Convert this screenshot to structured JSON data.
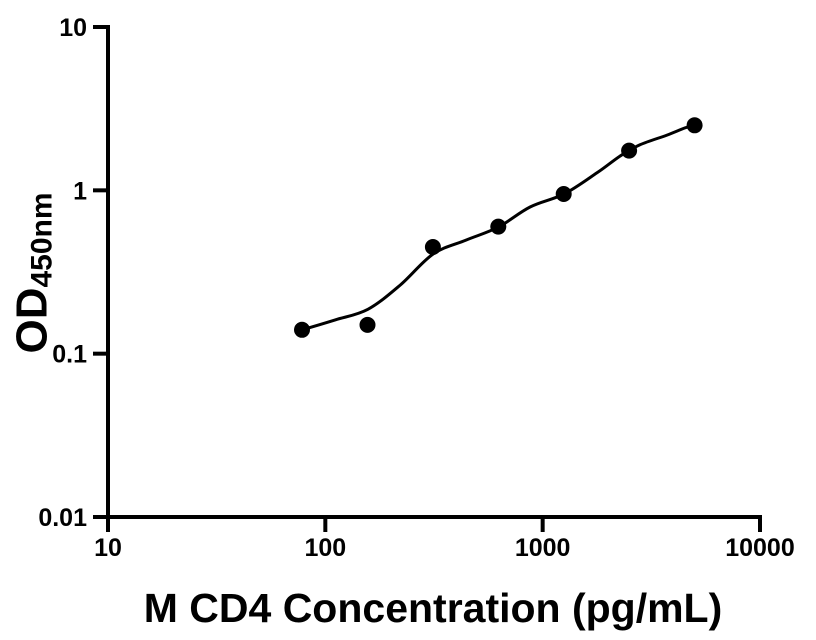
{
  "chart_data": {
    "type": "scatter",
    "title": "",
    "xlabel": "M CD4 Concentration (pg/mL)",
    "ylabel_main": "OD",
    "ylabel_subscript": "450nm",
    "x_axis": {
      "scale": "log",
      "min": 10,
      "max": 10000,
      "ticks": [
        10,
        100,
        1000,
        10000
      ],
      "tick_labels": [
        "10",
        "100",
        "1000",
        "10000"
      ]
    },
    "y_axis": {
      "scale": "log",
      "min": 0.01,
      "max": 10,
      "ticks": [
        0.01,
        0.1,
        1,
        10
      ],
      "tick_labels": [
        "0.01",
        "0.1",
        "1",
        "10"
      ]
    },
    "grid": false,
    "legend": "none",
    "colors": {
      "background": "#ffffff",
      "axis": "#000000",
      "points": "#000000",
      "curve": "#000000"
    },
    "series": [
      {
        "name": "standard-points",
        "type": "scatter",
        "points": [
          {
            "x": 78.125,
            "y": 0.14
          },
          {
            "x": 156.25,
            "y": 0.15
          },
          {
            "x": 312.5,
            "y": 0.45
          },
          {
            "x": 625,
            "y": 0.6
          },
          {
            "x": 1250,
            "y": 0.95
          },
          {
            "x": 2500,
            "y": 1.75
          },
          {
            "x": 5000,
            "y": 2.5
          }
        ]
      },
      {
        "name": "fit-curve",
        "type": "line",
        "points_xy": [
          [
            78.125,
            0.14
          ],
          [
            111,
            0.161
          ],
          [
            157,
            0.187
          ],
          [
            221,
            0.263
          ],
          [
            313,
            0.407
          ],
          [
            444,
            0.496
          ],
          [
            624,
            0.595
          ],
          [
            875,
            0.791
          ],
          [
            1255,
            0.95
          ],
          [
            1779,
            1.28
          ],
          [
            2270,
            1.62
          ],
          [
            2805,
            1.9
          ],
          [
            3733,
            2.18
          ],
          [
            4519,
            2.41
          ],
          [
            5000,
            2.5
          ]
        ]
      }
    ]
  }
}
